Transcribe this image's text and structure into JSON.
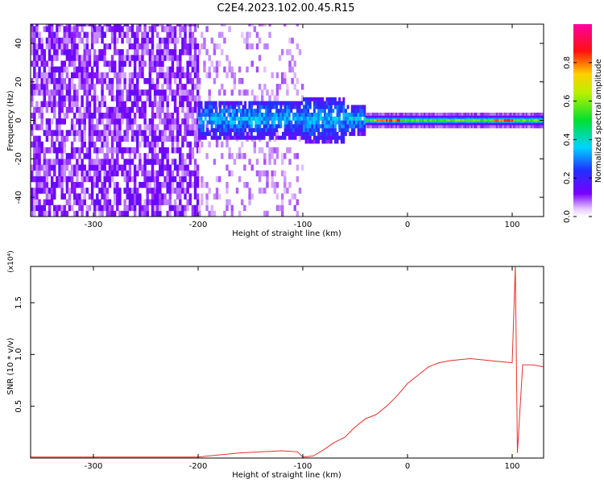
{
  "title": "C2E4.2023.102.00.45.R15",
  "chart_data": [
    {
      "type": "heatmap",
      "xlabel": "Height of straight line (km)",
      "ylabel": "Frequency (Hz)",
      "xlim": [
        -360,
        130
      ],
      "ylim": [
        -50,
        50
      ],
      "xticks": [
        -300,
        -200,
        -100,
        0,
        100
      ],
      "yticks": [
        -40,
        -20,
        0,
        20,
        40
      ],
      "ytick_labels": [
        "-40",
        "-20",
        "0",
        "20",
        "40"
      ],
      "colorbar": {
        "label": "Normalized spectral amplitude",
        "range": [
          0.0,
          1.0
        ],
        "ticks": [
          0.0,
          0.2,
          0.4,
          0.6,
          0.8
        ],
        "tick_labels": [
          "0.0",
          "0.2",
          "0.4",
          "0.6",
          "0.8"
        ],
        "colormap": "rainbow (white/violet → blue → cyan → green → yellow → red → magenta)"
      },
      "regions": [
        {
          "x": [
            -360,
            -200
          ],
          "description": "dense noise, violet, amplitude ~0.1-0.15 across full band"
        },
        {
          "x": [
            -200,
            -100
          ],
          "description": "sparse light-violet noise with band around 0 Hz (±10 Hz), peaks ~0.25-0.3"
        },
        {
          "x": [
            -100,
            -40
          ],
          "description": "signal band near 0 Hz, ±12 Hz, amplitude ~0.2-0.35"
        },
        {
          "x": [
            -40,
            130
          ],
          "description": "narrow line at 0 Hz (±3 Hz), amplitude ~0.5-0.9, red peaks near -30..-10 and 80..100"
        }
      ]
    },
    {
      "type": "line",
      "xlabel": "Height of straight line (km)",
      "ylabel": "SNR (10 * v/v)",
      "y_multiplier": "(x10⁴)",
      "xlim": [
        -360,
        130
      ],
      "ylim": [
        0,
        1.85
      ],
      "xticks": [
        -300,
        -200,
        -100,
        0,
        100
      ],
      "yticks": [
        0.5,
        1.0,
        1.5
      ],
      "ytick_labels": [
        "0.5",
        "1.0",
        "1.5"
      ],
      "color": "#e8302a",
      "series": [
        {
          "x": [
            -360,
            -300,
            -250,
            -200,
            -180,
            -160,
            -140,
            -120,
            -105,
            -100,
            -90,
            -80,
            -70,
            -60,
            -50,
            -40,
            -30,
            -20,
            -10,
            0,
            10,
            20,
            30,
            40,
            50,
            60,
            70,
            80,
            90,
            100,
            103,
            105,
            110,
            120,
            130
          ],
          "values": [
            0.01,
            0.01,
            0.01,
            0.01,
            0.03,
            0.05,
            0.06,
            0.07,
            0.06,
            0.01,
            0.02,
            0.08,
            0.15,
            0.2,
            0.3,
            0.38,
            0.42,
            0.5,
            0.6,
            0.72,
            0.8,
            0.88,
            0.92,
            0.94,
            0.95,
            0.96,
            0.95,
            0.94,
            0.93,
            0.92,
            1.85,
            0.05,
            0.9,
            0.9,
            0.88
          ]
        }
      ]
    }
  ]
}
